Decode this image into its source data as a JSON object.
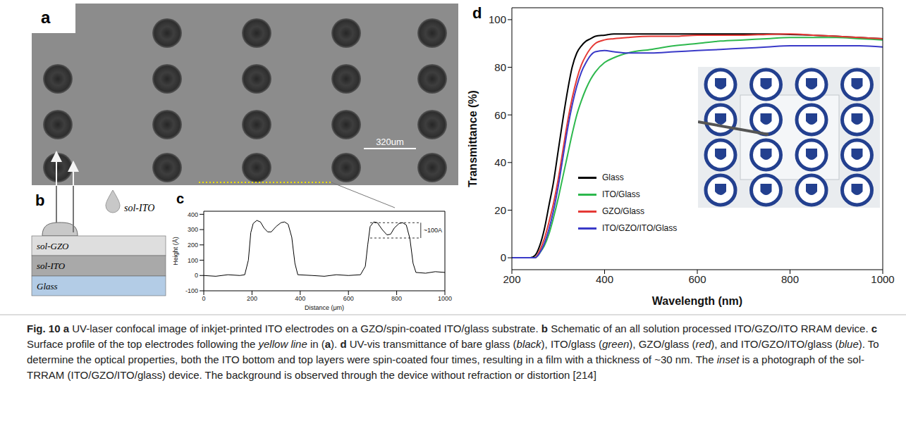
{
  "panels": {
    "a": {
      "label": "a",
      "scale_bar": "320um"
    },
    "b": {
      "label": "b",
      "layers": [
        "sol-GZO",
        "sol-ITO",
        "Glass"
      ],
      "droplet": "sol-ITO"
    },
    "c": {
      "label": "c"
    },
    "d": {
      "label": "d"
    }
  },
  "chart_data": [
    {
      "type": "line",
      "x_label": "Distance (μm)",
      "y_label": "Height (Å)",
      "color": "#000000",
      "x": [
        0,
        50,
        100,
        150,
        170,
        185,
        195,
        205,
        220,
        235,
        250,
        265,
        280,
        300,
        320,
        335,
        350,
        365,
        378,
        390,
        450,
        500,
        550,
        600,
        650,
        670,
        680,
        690,
        705,
        720,
        740,
        760,
        775,
        790,
        810,
        825,
        840,
        855,
        868,
        880,
        920,
        960,
        1000
      ],
      "values": [
        0,
        -5,
        5,
        0,
        5,
        100,
        280,
        340,
        360,
        350,
        310,
        285,
        285,
        320,
        345,
        350,
        335,
        250,
        80,
        5,
        0,
        -5,
        5,
        0,
        5,
        60,
        200,
        320,
        350,
        345,
        300,
        265,
        270,
        310,
        340,
        345,
        330,
        240,
        80,
        20,
        15,
        25,
        20
      ],
      "xlim": [
        0,
        1000
      ],
      "xticks": [
        0,
        200,
        400,
        600,
        800,
        1000
      ],
      "ylim": [
        -100,
        420
      ],
      "yticks": [
        -100,
        0,
        100,
        200,
        300,
        400
      ],
      "annotation": {
        "text": "~100A",
        "x": [
          690,
          900
        ],
        "y": [
          245,
          345
        ]
      }
    },
    {
      "type": "line",
      "x_label": "Wavelength (nm)",
      "y_label": "Transmittance (%)",
      "x": [
        200,
        240,
        250,
        260,
        270,
        280,
        290,
        300,
        310,
        320,
        330,
        340,
        350,
        360,
        370,
        380,
        400,
        420,
        450,
        500,
        550,
        600,
        650,
        700,
        750,
        800,
        850,
        900,
        950,
        1000
      ],
      "series": [
        {
          "name": "Glass",
          "color": "#000000",
          "values": [
            0,
            0,
            1,
            5,
            12,
            22,
            32,
            45,
            58,
            70,
            80,
            86,
            89,
            91,
            92,
            93,
            93.5,
            94,
            94,
            94,
            94,
            94,
            94,
            94,
            94,
            93.8,
            93.5,
            93,
            92.5,
            92
          ]
        },
        {
          "name": "ITO/Glass",
          "color": "#2db84d",
          "values": [
            0,
            0,
            0,
            2,
            5,
            10,
            17,
            25,
            34,
            43,
            52,
            60,
            66,
            71,
            75,
            78,
            82,
            84,
            86,
            87.5,
            89,
            90,
            91,
            91.5,
            92,
            92.5,
            92.5,
            92.5,
            92,
            91.5
          ]
        },
        {
          "name": "GZO/Glass",
          "color": "#e53935",
          "values": [
            0,
            0,
            0,
            3,
            8,
            15,
            23,
            33,
            45,
            57,
            67,
            75,
            81,
            85,
            88,
            90,
            91.5,
            92,
            92.5,
            93,
            93,
            93.5,
            93.5,
            93.5,
            93.8,
            94,
            93.5,
            93,
            92.5,
            92
          ]
        },
        {
          "name": "ITO/GZO/ITO/Glass",
          "color": "#3a3ac8",
          "values": [
            0,
            0,
            0,
            2,
            6,
            12,
            20,
            30,
            42,
            54,
            64,
            72,
            78,
            82,
            85,
            86.5,
            87,
            86.5,
            86,
            86,
            86.5,
            87,
            87.5,
            88,
            88.5,
            89,
            89,
            89,
            89,
            88.5
          ]
        }
      ],
      "xlim": [
        200,
        1000
      ],
      "xticks": [
        200,
        400,
        600,
        800,
        1000
      ],
      "ylim": [
        -5,
        105
      ],
      "yticks": [
        0,
        20,
        40,
        60,
        80,
        100
      ],
      "legend": "left"
    }
  ],
  "caption": [
    {
      "text": "Fig. 10 a",
      "bold": true
    },
    {
      "text": " UV-laser confocal image of inkjet-printed ITO electrodes on a GZO/spin-coated ITO/glass substrate. "
    },
    {
      "text": "b",
      "bold": true
    },
    {
      "text": " Schematic of an all solution processed ITO/GZO/ITO RRAM device. "
    },
    {
      "text": "c",
      "bold": true
    },
    {
      "text": " Surface profile of the top electrodes following the "
    },
    {
      "text": "yellow line",
      "italic": true
    },
    {
      "text": " in ("
    },
    {
      "text": "a",
      "bold": true
    },
    {
      "text": "). "
    },
    {
      "text": "d",
      "bold": true
    },
    {
      "text": " UV-vis transmittance of bare glass ("
    },
    {
      "text": "black",
      "italic": true
    },
    {
      "text": "), ITO/glass ("
    },
    {
      "text": "green",
      "italic": true
    },
    {
      "text": "), GZO/glass ("
    },
    {
      "text": "red",
      "italic": true
    },
    {
      "text": "), and ITO/GZO/ITO/glass ("
    },
    {
      "text": "blue",
      "italic": true
    },
    {
      "text": "). To determine the optical properties, both the ITO bottom and top layers were spin-coated four times, resulting in a film with a thickness of ~30 nm. The "
    },
    {
      "text": "inset",
      "italic": true
    },
    {
      "text": " is a photograph of the sol-TRRAM (ITO/GZO/ITO/glass) device. The background is observed through the device without refraction or distortion [214]"
    }
  ]
}
